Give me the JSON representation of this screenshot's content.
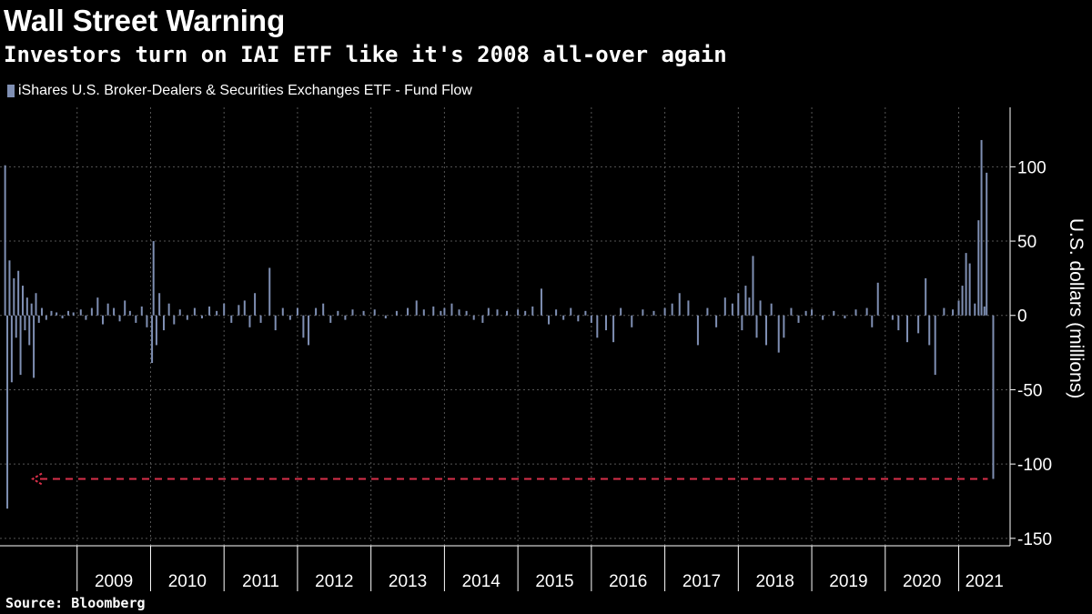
{
  "chart_data": {
    "type": "bar",
    "title": "Wall Street Warning",
    "subtitle": "Investors turn on IAI ETF like it's 2008 all-over again",
    "series": [
      {
        "name": "iShares U.S. Broker-Dealers & Securities Exchanges ETF - Fund Flow",
        "color": "#7f8fb3",
        "points": [
          {
            "t": 2008.02,
            "v": 101
          },
          {
            "t": 2008.05,
            "v": -130
          },
          {
            "t": 2008.08,
            "v": 37
          },
          {
            "t": 2008.11,
            "v": -45
          },
          {
            "t": 2008.14,
            "v": 25
          },
          {
            "t": 2008.17,
            "v": -15
          },
          {
            "t": 2008.2,
            "v": 30
          },
          {
            "t": 2008.23,
            "v": -40
          },
          {
            "t": 2008.26,
            "v": 20
          },
          {
            "t": 2008.29,
            "v": -10
          },
          {
            "t": 2008.32,
            "v": 12
          },
          {
            "t": 2008.35,
            "v": -20
          },
          {
            "t": 2008.38,
            "v": 8
          },
          {
            "t": 2008.41,
            "v": -42
          },
          {
            "t": 2008.44,
            "v": 15
          },
          {
            "t": 2008.48,
            "v": -5
          },
          {
            "t": 2008.52,
            "v": 5
          },
          {
            "t": 2008.58,
            "v": -3
          },
          {
            "t": 2008.65,
            "v": 3
          },
          {
            "t": 2008.72,
            "v": 2
          },
          {
            "t": 2008.8,
            "v": -2
          },
          {
            "t": 2008.88,
            "v": 3
          },
          {
            "t": 2008.95,
            "v": 2
          },
          {
            "t": 2009.05,
            "v": 4
          },
          {
            "t": 2009.12,
            "v": -3
          },
          {
            "t": 2009.2,
            "v": 5
          },
          {
            "t": 2009.28,
            "v": 12
          },
          {
            "t": 2009.35,
            "v": -6
          },
          {
            "t": 2009.42,
            "v": 8
          },
          {
            "t": 2009.5,
            "v": 5
          },
          {
            "t": 2009.58,
            "v": -4
          },
          {
            "t": 2009.65,
            "v": 10
          },
          {
            "t": 2009.72,
            "v": 3
          },
          {
            "t": 2009.8,
            "v": -5
          },
          {
            "t": 2009.88,
            "v": 6
          },
          {
            "t": 2009.95,
            "v": -8
          },
          {
            "t": 2010.02,
            "v": -32
          },
          {
            "t": 2010.04,
            "v": 50
          },
          {
            "t": 2010.08,
            "v": -20
          },
          {
            "t": 2010.12,
            "v": 15
          },
          {
            "t": 2010.18,
            "v": -10
          },
          {
            "t": 2010.25,
            "v": 8
          },
          {
            "t": 2010.32,
            "v": -6
          },
          {
            "t": 2010.4,
            "v": 4
          },
          {
            "t": 2010.5,
            "v": -3
          },
          {
            "t": 2010.6,
            "v": 5
          },
          {
            "t": 2010.7,
            "v": -2
          },
          {
            "t": 2010.8,
            "v": 6
          },
          {
            "t": 2010.9,
            "v": 3
          },
          {
            "t": 2011.0,
            "v": 8
          },
          {
            "t": 2011.1,
            "v": -5
          },
          {
            "t": 2011.2,
            "v": 7
          },
          {
            "t": 2011.28,
            "v": 10
          },
          {
            "t": 2011.35,
            "v": -8
          },
          {
            "t": 2011.42,
            "v": 15
          },
          {
            "t": 2011.5,
            "v": -5
          },
          {
            "t": 2011.62,
            "v": 32
          },
          {
            "t": 2011.7,
            "v": -10
          },
          {
            "t": 2011.8,
            "v": 5
          },
          {
            "t": 2011.9,
            "v": -3
          },
          {
            "t": 2012.0,
            "v": 5
          },
          {
            "t": 2012.08,
            "v": -15
          },
          {
            "t": 2012.15,
            "v": -20
          },
          {
            "t": 2012.25,
            "v": 5
          },
          {
            "t": 2012.35,
            "v": 8
          },
          {
            "t": 2012.45,
            "v": -5
          },
          {
            "t": 2012.55,
            "v": 3
          },
          {
            "t": 2012.65,
            "v": -3
          },
          {
            "t": 2012.75,
            "v": 4
          },
          {
            "t": 2012.9,
            "v": 3
          },
          {
            "t": 2013.05,
            "v": 4
          },
          {
            "t": 2013.2,
            "v": -2
          },
          {
            "t": 2013.35,
            "v": 3
          },
          {
            "t": 2013.5,
            "v": 5
          },
          {
            "t": 2013.62,
            "v": 10
          },
          {
            "t": 2013.72,
            "v": 4
          },
          {
            "t": 2013.85,
            "v": 6
          },
          {
            "t": 2013.95,
            "v": 3
          },
          {
            "t": 2014.0,
            "v": 5
          },
          {
            "t": 2014.1,
            "v": 8
          },
          {
            "t": 2014.2,
            "v": 4
          },
          {
            "t": 2014.3,
            "v": 3
          },
          {
            "t": 2014.4,
            "v": -3
          },
          {
            "t": 2014.52,
            "v": -5
          },
          {
            "t": 2014.6,
            "v": 5
          },
          {
            "t": 2014.72,
            "v": 4
          },
          {
            "t": 2014.85,
            "v": 3
          },
          {
            "t": 2015.0,
            "v": 4
          },
          {
            "t": 2015.1,
            "v": 3
          },
          {
            "t": 2015.2,
            "v": 6
          },
          {
            "t": 2015.32,
            "v": 18
          },
          {
            "t": 2015.42,
            "v": -6
          },
          {
            "t": 2015.52,
            "v": 4
          },
          {
            "t": 2015.62,
            "v": -3
          },
          {
            "t": 2015.72,
            "v": 5
          },
          {
            "t": 2015.82,
            "v": -4
          },
          {
            "t": 2015.92,
            "v": 3
          },
          {
            "t": 2016.0,
            "v": -5
          },
          {
            "t": 2016.08,
            "v": -15
          },
          {
            "t": 2016.2,
            "v": -10
          },
          {
            "t": 2016.3,
            "v": -18
          },
          {
            "t": 2016.4,
            "v": 5
          },
          {
            "t": 2016.55,
            "v": -8
          },
          {
            "t": 2016.7,
            "v": 4
          },
          {
            "t": 2016.85,
            "v": 3
          },
          {
            "t": 2017.0,
            "v": 5
          },
          {
            "t": 2017.1,
            "v": 8
          },
          {
            "t": 2017.2,
            "v": 15
          },
          {
            "t": 2017.32,
            "v": 10
          },
          {
            "t": 2017.45,
            "v": -20
          },
          {
            "t": 2017.58,
            "v": 5
          },
          {
            "t": 2017.7,
            "v": -8
          },
          {
            "t": 2017.82,
            "v": 12
          },
          {
            "t": 2017.92,
            "v": 8
          },
          {
            "t": 2018.0,
            "v": 15
          },
          {
            "t": 2018.05,
            "v": -10
          },
          {
            "t": 2018.1,
            "v": 20
          },
          {
            "t": 2018.15,
            "v": 12
          },
          {
            "t": 2018.2,
            "v": 40
          },
          {
            "t": 2018.25,
            "v": -15
          },
          {
            "t": 2018.3,
            "v": 10
          },
          {
            "t": 2018.38,
            "v": -20
          },
          {
            "t": 2018.45,
            "v": 8
          },
          {
            "t": 2018.55,
            "v": -25
          },
          {
            "t": 2018.62,
            "v": -15
          },
          {
            "t": 2018.72,
            "v": 5
          },
          {
            "t": 2018.82,
            "v": -5
          },
          {
            "t": 2018.92,
            "v": 3
          },
          {
            "t": 2019.0,
            "v": 4
          },
          {
            "t": 2019.15,
            "v": -3
          },
          {
            "t": 2019.3,
            "v": 3
          },
          {
            "t": 2019.45,
            "v": -2
          },
          {
            "t": 2019.6,
            "v": 4
          },
          {
            "t": 2019.75,
            "v": 5
          },
          {
            "t": 2019.82,
            "v": -8
          },
          {
            "t": 2019.9,
            "v": 22
          },
          {
            "t": 2020.1,
            "v": -3
          },
          {
            "t": 2020.18,
            "v": -10
          },
          {
            "t": 2020.3,
            "v": -18
          },
          {
            "t": 2020.45,
            "v": -12
          },
          {
            "t": 2020.55,
            "v": 25
          },
          {
            "t": 2020.6,
            "v": -20
          },
          {
            "t": 2020.68,
            "v": -40
          },
          {
            "t": 2020.8,
            "v": 5
          },
          {
            "t": 2020.92,
            "v": 4
          },
          {
            "t": 2021.0,
            "v": 10
          },
          {
            "t": 2021.05,
            "v": 20
          },
          {
            "t": 2021.1,
            "v": 42
          },
          {
            "t": 2021.15,
            "v": 35
          },
          {
            "t": 2021.22,
            "v": 8
          },
          {
            "t": 2021.27,
            "v": 64
          },
          {
            "t": 2021.31,
            "v": 118
          },
          {
            "t": 2021.35,
            "v": 6
          },
          {
            "t": 2021.38,
            "v": 96
          },
          {
            "t": 2021.47,
            "v": -110
          }
        ]
      }
    ],
    "y_axis": {
      "title": "U.S. dollars (millions)",
      "ticks": [
        "100",
        "50",
        "0",
        "-50",
        "-100",
        "-150"
      ],
      "range": [
        -155,
        140
      ],
      "gridlines": [
        100,
        50,
        0,
        -50,
        -100,
        -150
      ]
    },
    "x_axis": {
      "labels": [
        "2009",
        "2010",
        "2011",
        "2012",
        "2013",
        "2014",
        "2015",
        "2016",
        "2017",
        "2018",
        "2019",
        "2020",
        "2021"
      ],
      "range": [
        2008.0,
        2021.65
      ]
    },
    "reference_line": {
      "value": -110,
      "color": "#d9304a",
      "style": "dashed"
    },
    "grid": true,
    "legend": "top-left"
  },
  "source": "Source: Bloomberg"
}
